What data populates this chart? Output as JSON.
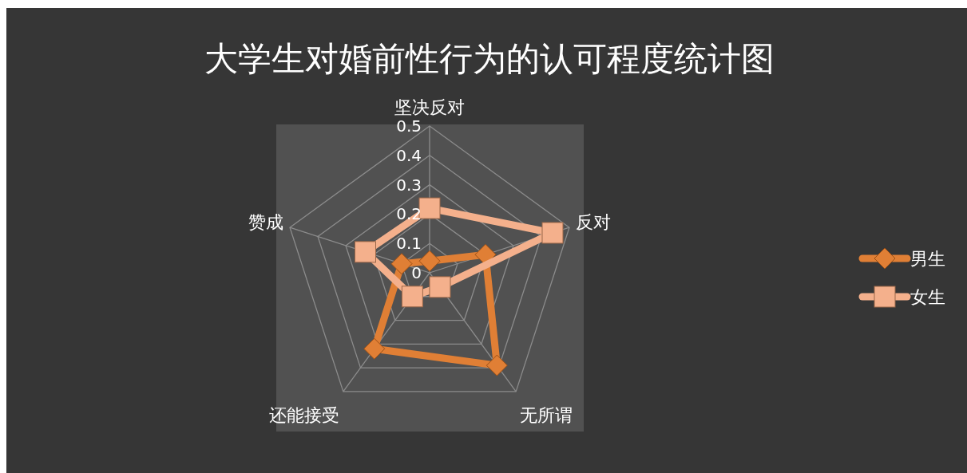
{
  "chart_data": {
    "type": "radar",
    "title": "大学生对婚前性行为的认可程度统计图",
    "categories": [
      "坚决反对",
      "反对",
      "无所谓",
      "还能接受",
      "赞成"
    ],
    "ylim": [
      0,
      0.5
    ],
    "yticks": [
      0,
      0.1,
      0.2,
      0.3,
      0.4,
      0.5
    ],
    "grid": true,
    "legend": "right",
    "series": [
      {
        "name": "男生",
        "color": "#e07f35",
        "marker": "diamond",
        "values": [
          0.04,
          0.2,
          0.39,
          0.32,
          0.1
        ]
      },
      {
        "name": "女生",
        "color": "#f4b08c",
        "marker": "square",
        "values": [
          0.22,
          0.44,
          0.06,
          0.1,
          0.23
        ]
      }
    ]
  }
}
